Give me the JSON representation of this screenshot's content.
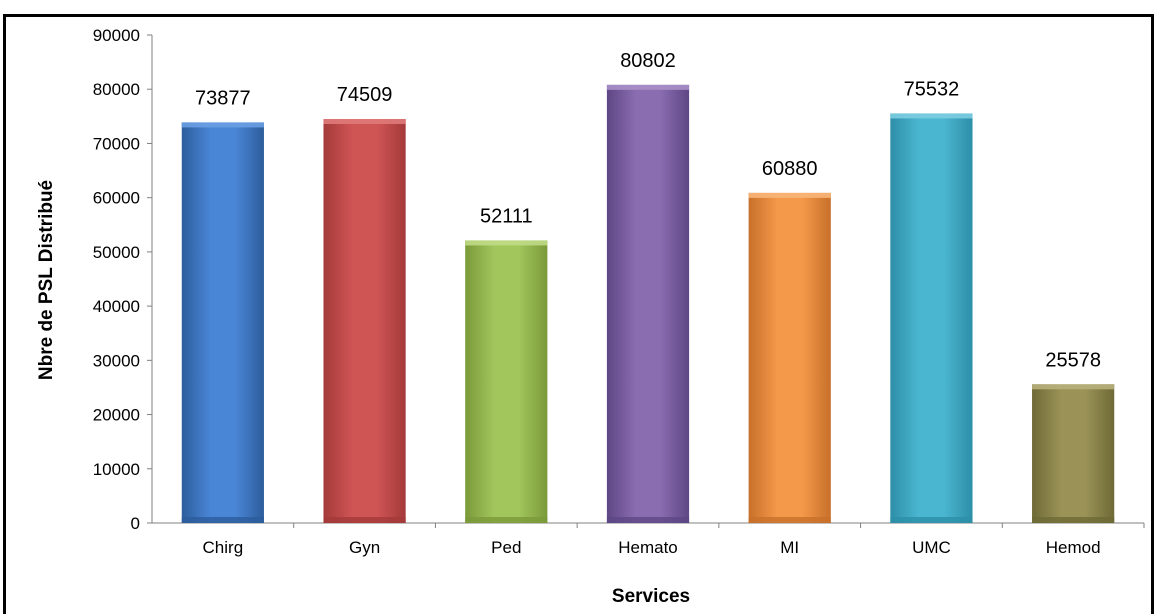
{
  "chart_data": {
    "type": "bar",
    "categories": [
      "Chirg",
      "Gyn",
      "Ped",
      "Hemato",
      "MI",
      "UMC",
      "Hemod"
    ],
    "values": [
      73877,
      74509,
      52111,
      80802,
      60880,
      75532,
      25578
    ],
    "data_labels": [
      "73877",
      "74509",
      "52111",
      "80802",
      "60880",
      "75532",
      "25578"
    ],
    "xlabel": "Services",
    "ylabel": "Nbre de PSL Distribué",
    "ylim": [
      0,
      90000
    ],
    "yticks": [
      0,
      10000,
      20000,
      30000,
      40000,
      50000,
      60000,
      70000,
      80000,
      90000
    ],
    "grid": false,
    "legend": "none",
    "colors": [
      [
        "#2c5d9c",
        "#4a86d6",
        "#6a9fe3"
      ],
      [
        "#a43a3a",
        "#cf5454",
        "#e07a7a"
      ],
      [
        "#7a9a3a",
        "#a2c55c",
        "#c0da86"
      ],
      [
        "#5e4784",
        "#8a6cb0",
        "#a890c8"
      ],
      [
        "#c8702a",
        "#f4994a",
        "#f8b679"
      ],
      [
        "#2d8ea8",
        "#4bb6d0",
        "#7dcde0"
      ],
      [
        "#6e6a36",
        "#9a9257",
        "#b8b07c"
      ]
    ]
  }
}
